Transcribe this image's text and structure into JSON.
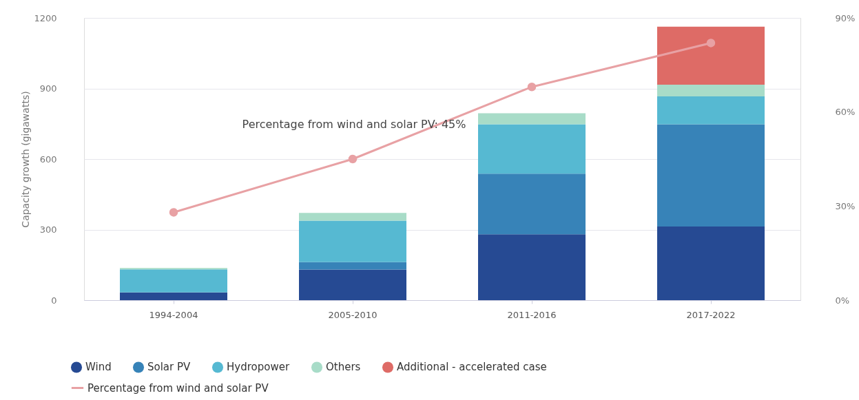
{
  "chart_data": {
    "type": "bar",
    "stacked": true,
    "ylabel": "Capacity growth (gigawatts)",
    "categories": [
      "1994-2004",
      "2005-2010",
      "2011-2016",
      "2017-2022"
    ],
    "series": [
      {
        "name": "Wind",
        "color": "#264a93",
        "values": [
          32,
          130,
          280,
          313
        ]
      },
      {
        "name": "Solar PV",
        "color": "#3783b8",
        "values": [
          2,
          32,
          258,
          435
        ]
      },
      {
        "name": "Hydropower",
        "color": "#56b9d2",
        "values": [
          97,
          176,
          210,
          118
        ]
      },
      {
        "name": "Others",
        "color": "#a8dcc8",
        "values": [
          6,
          33,
          47,
          50
        ]
      },
      {
        "name": "Additional - accelerated case",
        "color": "#de6b66",
        "values": [
          0,
          0,
          0,
          247
        ]
      },
      {
        "name": "Percentage from wind and solar PV",
        "color": "#e8a1a4",
        "type": "line",
        "axis": "y2",
        "marker": "circle",
        "values": [
          28,
          45,
          68,
          82
        ]
      }
    ],
    "ylim": [
      0,
      1200
    ],
    "yticks": [
      0,
      300,
      600,
      900,
      {
        "value": 1200,
        "label": "1200"
      }
    ],
    "y2lim": [
      0,
      90
    ],
    "y2ticks": [
      {
        "value": 0,
        "label": "0%"
      },
      {
        "value": 30,
        "label": "30%"
      },
      {
        "value": 60,
        "label": "60%"
      },
      {
        "value": 90,
        "label": "90%"
      }
    ],
    "annotations": [
      "Percentage from wind and solar PV: 45%"
    ],
    "grid": "y",
    "legend": "bottom"
  }
}
